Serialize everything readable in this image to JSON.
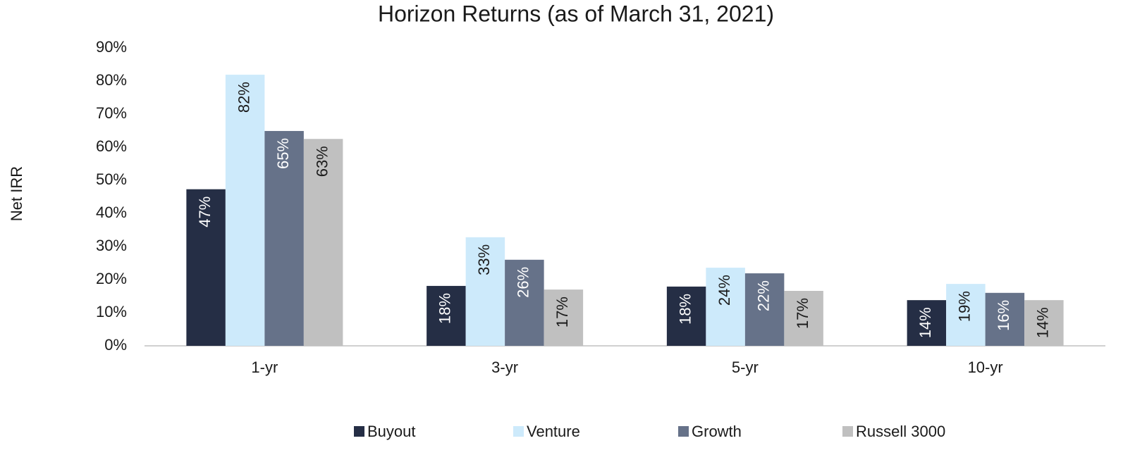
{
  "chart_data": {
    "type": "bar",
    "title": "Horizon Returns (as of March 31, 2021)",
    "y_label": "Net IRR",
    "categories": [
      "1-yr",
      "3-yr",
      "5-yr",
      "10-yr"
    ],
    "series": [
      {
        "name": "Buyout",
        "color": "#252e45",
        "values": [
          47.3,
          18.1,
          17.9,
          13.8
        ],
        "value_labels": [
          "47%",
          "18%",
          "18%",
          "14%"
        ]
      },
      {
        "name": "Venture",
        "color": "#cdeafb",
        "values": [
          81.9,
          32.8,
          23.6,
          18.7
        ],
        "value_labels": [
          "82%",
          "33%",
          "24%",
          "19%"
        ]
      },
      {
        "name": "Growth",
        "color": "#667289",
        "values": [
          64.9,
          26.0,
          21.9,
          16.0
        ],
        "value_labels": [
          "65%",
          "26%",
          "22%",
          "16%"
        ]
      },
      {
        "name": "Russell 3000",
        "color": "#c0c0c0",
        "values": [
          62.5,
          17.0,
          16.6,
          13.8
        ],
        "value_labels": [
          "63%",
          "17%",
          "17%",
          "14%"
        ]
      }
    ],
    "ylim": [
      0,
      90
    ],
    "yticks": [
      {
        "value": 0,
        "label": "0%"
      },
      {
        "value": 10,
        "label": "10%"
      },
      {
        "value": 20,
        "label": "20%"
      },
      {
        "value": 30,
        "label": "30%"
      },
      {
        "value": 40,
        "label": "40%"
      },
      {
        "value": 50,
        "label": "50%"
      },
      {
        "value": 60,
        "label": "60%"
      },
      {
        "value": 70,
        "label": "70%"
      },
      {
        "value": 80,
        "label": "80%"
      },
      {
        "value": 90,
        "label": "90%"
      }
    ],
    "grid": false,
    "legend": "bottom"
  }
}
